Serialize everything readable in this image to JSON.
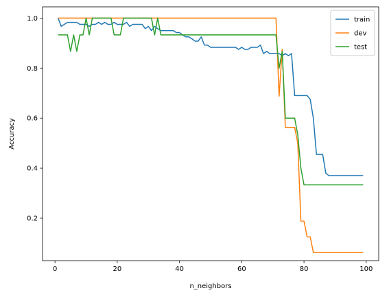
{
  "chart_data": {
    "type": "line",
    "title": "",
    "xlabel": "n_neighbors",
    "ylabel": "Accuracy",
    "xlim": [
      -4,
      104
    ],
    "ylim": [
      0.03,
      1.045
    ],
    "xticks": [
      0,
      20,
      40,
      60,
      80,
      100
    ],
    "yticks": [
      0.2,
      0.4,
      0.6,
      0.8,
      1.0
    ],
    "grid": false,
    "legend_position": "top-right",
    "series": [
      {
        "name": "train",
        "color": "#1f77b4",
        "x": [
          1,
          2,
          3,
          4,
          5,
          6,
          7,
          8,
          9,
          10,
          11,
          12,
          13,
          14,
          15,
          16,
          17,
          18,
          19,
          20,
          21,
          22,
          23,
          24,
          25,
          26,
          27,
          28,
          29,
          30,
          31,
          32,
          33,
          34,
          35,
          36,
          37,
          38,
          39,
          40,
          41,
          42,
          43,
          44,
          45,
          46,
          47,
          48,
          49,
          50,
          51,
          52,
          53,
          54,
          55,
          56,
          57,
          58,
          59,
          60,
          61,
          62,
          63,
          64,
          65,
          66,
          67,
          68,
          69,
          70,
          71,
          72,
          73,
          74,
          75,
          76,
          77,
          78,
          79,
          80,
          81,
          82,
          83,
          84,
          85,
          86,
          87,
          88,
          89,
          90,
          91,
          92,
          93,
          94,
          95,
          96,
          97,
          98,
          99
        ],
        "y": [
          1.0,
          0.967,
          0.975,
          0.983,
          0.983,
          0.983,
          0.983,
          0.975,
          0.975,
          0.975,
          0.967,
          0.975,
          0.975,
          0.983,
          0.975,
          0.983,
          0.975,
          0.975,
          0.983,
          0.975,
          0.975,
          0.975,
          0.983,
          0.967,
          0.975,
          0.975,
          0.975,
          0.975,
          0.958,
          0.967,
          0.95,
          0.967,
          0.958,
          0.95,
          0.95,
          0.95,
          0.95,
          0.95,
          0.942,
          0.942,
          0.933,
          0.925,
          0.925,
          0.917,
          0.908,
          0.908,
          0.925,
          0.892,
          0.892,
          0.883,
          0.883,
          0.883,
          0.883,
          0.883,
          0.883,
          0.883,
          0.883,
          0.883,
          0.875,
          0.883,
          0.875,
          0.875,
          0.883,
          0.883,
          0.883,
          0.892,
          0.858,
          0.867,
          0.858,
          0.858,
          0.858,
          0.858,
          0.85,
          0.858,
          0.85,
          0.858,
          0.69,
          0.69,
          0.69,
          0.69,
          0.69,
          0.675,
          0.6,
          0.455,
          0.455,
          0.455,
          0.38,
          0.37,
          0.37,
          0.37,
          0.37,
          0.37,
          0.37,
          0.37,
          0.37,
          0.37,
          0.37,
          0.37,
          0.37
        ]
      },
      {
        "name": "dev",
        "color": "#ff7f0e",
        "x": [
          1,
          71,
          72,
          73,
          74,
          75,
          76,
          77,
          78,
          79,
          80,
          81,
          82,
          83,
          84,
          85,
          90,
          95,
          99
        ],
        "y": [
          1.0,
          1.0,
          0.688,
          0.875,
          0.563,
          0.563,
          0.563,
          0.563,
          0.5,
          0.188,
          0.188,
          0.125,
          0.125,
          0.0625,
          0.0625,
          0.0625,
          0.0625,
          0.0625,
          0.0625
        ]
      },
      {
        "name": "test",
        "color": "#2ca02c",
        "x": [
          1,
          2,
          3,
          4,
          5,
          6,
          7,
          8,
          9,
          10,
          11,
          12,
          13,
          14,
          15,
          16,
          17,
          18,
          19,
          20,
          21,
          22,
          23,
          24,
          25,
          26,
          27,
          28,
          29,
          30,
          31,
          32,
          33,
          34,
          35,
          40,
          50,
          60,
          70,
          71,
          72,
          73,
          74,
          75,
          76,
          77,
          78,
          79,
          80,
          81,
          82,
          85,
          90,
          95,
          99
        ],
        "y": [
          0.933,
          0.933,
          0.933,
          0.933,
          0.867,
          0.933,
          0.867,
          0.933,
          0.933,
          1.0,
          0.933,
          1.0,
          1.0,
          1.0,
          1.0,
          1.0,
          1.0,
          1.0,
          0.933,
          0.933,
          0.933,
          1.0,
          1.0,
          1.0,
          1.0,
          1.0,
          1.0,
          1.0,
          1.0,
          1.0,
          1.0,
          0.933,
          1.0,
          0.933,
          0.933,
          0.933,
          0.933,
          0.933,
          0.933,
          0.933,
          0.8,
          0.867,
          0.6,
          0.6,
          0.6,
          0.6,
          0.533,
          0.4,
          0.333,
          0.333,
          0.333,
          0.333,
          0.333,
          0.333,
          0.333
        ]
      }
    ]
  }
}
